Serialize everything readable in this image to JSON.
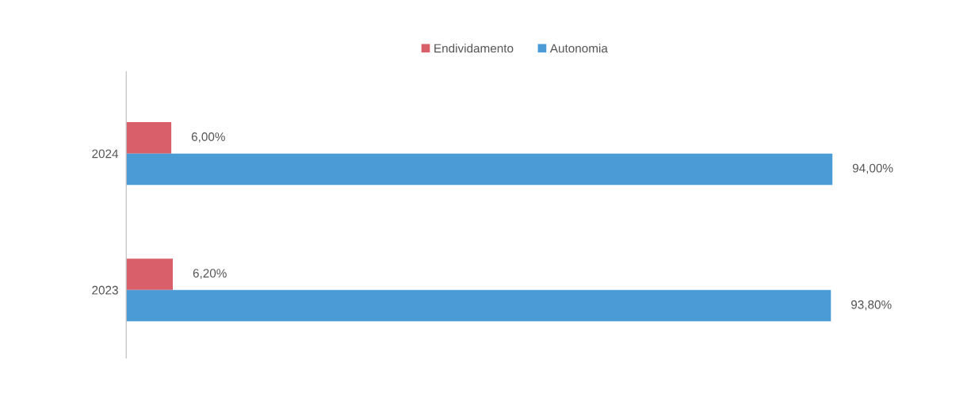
{
  "chart_data": {
    "type": "bar",
    "orientation": "horizontal",
    "categories": [
      "2024",
      "2023"
    ],
    "series": [
      {
        "name": "Endividamento",
        "color": "#d9606a",
        "values": [
          6.0,
          6.2
        ],
        "value_labels": [
          "6,00%",
          "6,20%"
        ]
      },
      {
        "name": "Autonomia",
        "color": "#4a9bd6",
        "values": [
          94.0,
          93.8
        ],
        "value_labels": [
          "94,00%",
          "93,80%"
        ]
      }
    ],
    "legend": "top",
    "tick_labels": "y"
  }
}
